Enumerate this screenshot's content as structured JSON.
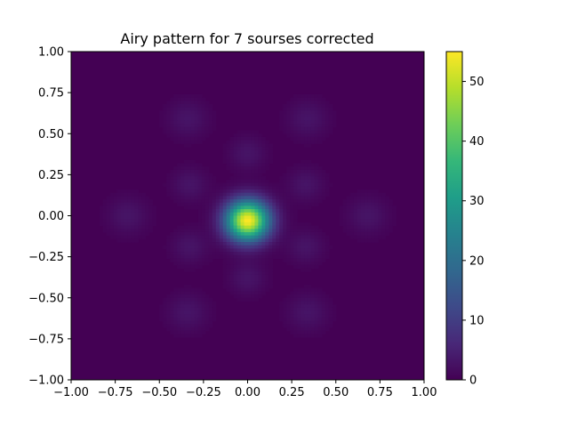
{
  "chart_data": {
    "type": "heatmap",
    "title": "Airy pattern for 7 sourses corrected",
    "xlabel": "",
    "ylabel": "",
    "xlim": [
      -1.0,
      1.0
    ],
    "ylim": [
      -1.0,
      1.0
    ],
    "x_ticks": [
      "−1.00",
      "−0.75",
      "−0.50",
      "−0.25",
      "0.00",
      "0.25",
      "0.50",
      "0.75",
      "1.00"
    ],
    "x_tick_values": [
      -1.0,
      -0.75,
      -0.5,
      -0.25,
      0.0,
      0.25,
      0.5,
      0.75,
      1.0
    ],
    "y_ticks": [
      "1.00",
      "0.75",
      "0.50",
      "0.25",
      "0.00",
      "−0.25",
      "−0.50",
      "−0.75",
      "−1.00"
    ],
    "y_tick_values": [
      1.0,
      0.75,
      0.5,
      0.25,
      0.0,
      -0.25,
      -0.5,
      -0.75,
      -1.0
    ],
    "colormap": "viridis",
    "colorbar": {
      "range": [
        0,
        55
      ],
      "ticks": [
        "0",
        "10",
        "20",
        "30",
        "40",
        "50"
      ],
      "tick_values": [
        0,
        10,
        20,
        30,
        40,
        50
      ]
    },
    "grid": false,
    "intensity_features": [
      {
        "feature": "central peak",
        "x": 0.0,
        "y": -0.03,
        "value": 55
      },
      {
        "feature": "inner ring",
        "radius": 0.38,
        "lobes": 6,
        "value": 3
      },
      {
        "feature": "outer ring",
        "radius": 0.68,
        "lobes": 6,
        "value": 3
      }
    ]
  }
}
